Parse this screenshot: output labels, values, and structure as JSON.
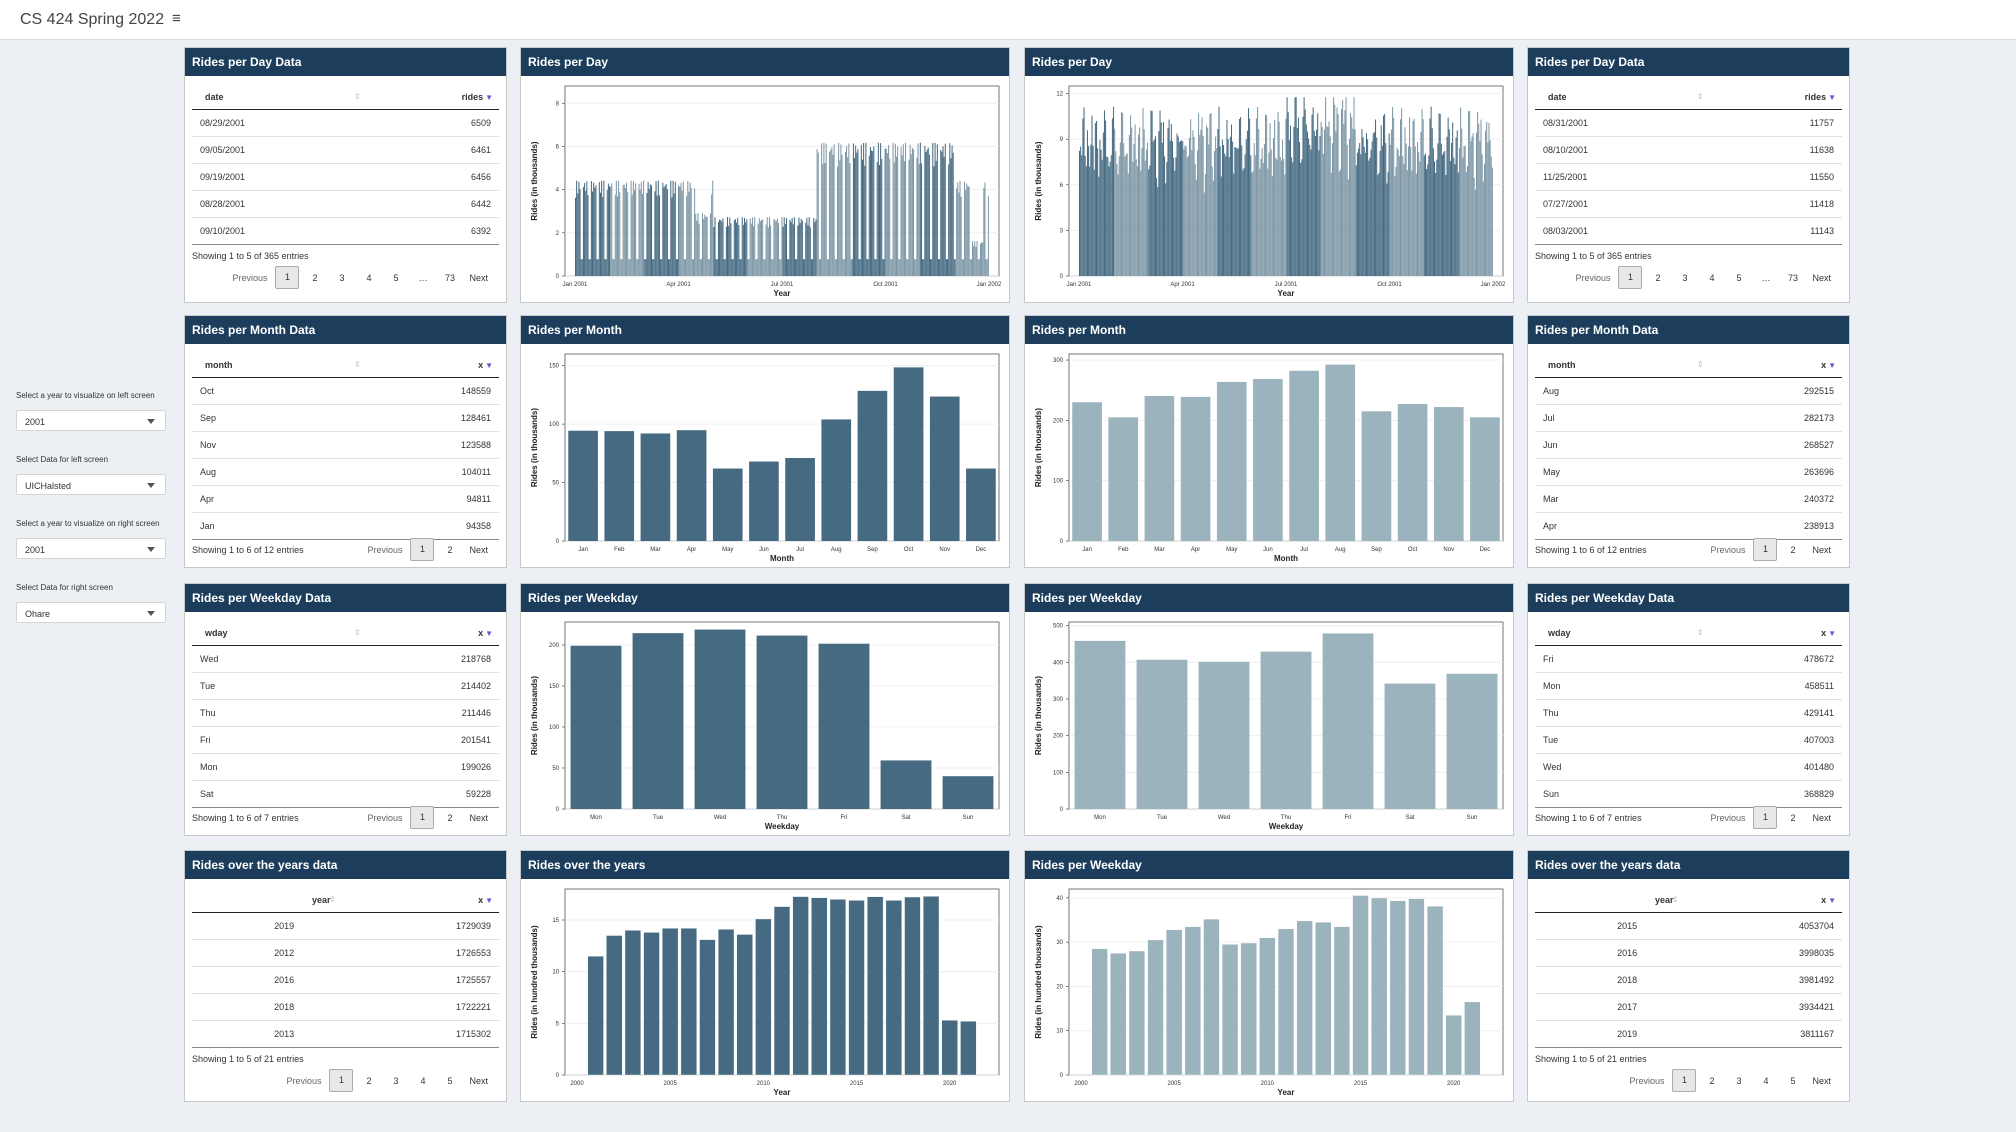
{
  "app": {
    "title": "CS 424 Spring 2022",
    "menu_icon": "hamburger-icon"
  },
  "sidebar": {
    "controls": [
      {
        "label": "Select a year to visualize on left screen",
        "value": "2001"
      },
      {
        "label": "Select Data for left screen",
        "value": "UICHalsted"
      },
      {
        "label": "Select a year to visualize on right screen",
        "value": "2001"
      },
      {
        "label": "Select Data for right screen",
        "value": "Ohare"
      }
    ]
  },
  "colors": {
    "header": "#1c3e5c",
    "left_bar": "#456a82",
    "right_bar": "#9bb3bd"
  },
  "tables": {
    "left_day": {
      "title": "Rides per Day Data",
      "col1": "date",
      "col2": "rides",
      "rows": [
        [
          "08/29/2001",
          "6509"
        ],
        [
          "09/05/2001",
          "6461"
        ],
        [
          "09/19/2001",
          "6456"
        ],
        [
          "08/28/2001",
          "6442"
        ],
        [
          "09/10/2001",
          "6392"
        ]
      ],
      "info": "Showing 1 to 5 of 365 entries",
      "pager": [
        "Previous",
        "1",
        "2",
        "3",
        "4",
        "5",
        "…",
        "73",
        "Next"
      ]
    },
    "right_day": {
      "title": "Rides per Day Data",
      "col1": "date",
      "col2": "rides",
      "rows": [
        [
          "08/31/2001",
          "11757"
        ],
        [
          "08/10/2001",
          "11638"
        ],
        [
          "11/25/2001",
          "11550"
        ],
        [
          "07/27/2001",
          "11418"
        ],
        [
          "08/03/2001",
          "11143"
        ]
      ],
      "info": "Showing 1 to 5 of 365 entries",
      "pager": [
        "Previous",
        "1",
        "2",
        "3",
        "4",
        "5",
        "…",
        "73",
        "Next"
      ]
    },
    "left_month": {
      "title": "Rides per Month Data",
      "col1": "month",
      "col2": "x",
      "rows": [
        [
          "Oct",
          "148559"
        ],
        [
          "Sep",
          "128461"
        ],
        [
          "Nov",
          "123588"
        ],
        [
          "Aug",
          "104011"
        ],
        [
          "Apr",
          "94811"
        ],
        [
          "Jan",
          "94358"
        ]
      ],
      "info": "Showing 1 to 6 of 12 entries",
      "pager": [
        "Previous",
        "1",
        "2",
        "Next"
      ]
    },
    "right_month": {
      "title": "Rides per Month Data",
      "col1": "month",
      "col2": "x",
      "rows": [
        [
          "Aug",
          "292515"
        ],
        [
          "Jul",
          "282173"
        ],
        [
          "Jun",
          "268527"
        ],
        [
          "May",
          "263696"
        ],
        [
          "Mar",
          "240372"
        ],
        [
          "Apr",
          "238913"
        ]
      ],
      "info": "Showing 1 to 6 of 12 entries",
      "pager": [
        "Previous",
        "1",
        "2",
        "Next"
      ]
    },
    "left_weekday": {
      "title": "Rides per Weekday Data",
      "col1": "wday",
      "col2": "x",
      "rows": [
        [
          "Wed",
          "218768"
        ],
        [
          "Tue",
          "214402"
        ],
        [
          "Thu",
          "211446"
        ],
        [
          "Fri",
          "201541"
        ],
        [
          "Mon",
          "199026"
        ],
        [
          "Sat",
          "59228"
        ]
      ],
      "info": "Showing 1 to 6 of 7 entries",
      "pager": [
        "Previous",
        "1",
        "2",
        "Next"
      ]
    },
    "right_weekday": {
      "title": "Rides per Weekday Data",
      "col1": "wday",
      "col2": "x",
      "rows": [
        [
          "Fri",
          "478672"
        ],
        [
          "Mon",
          "458511"
        ],
        [
          "Thu",
          "429141"
        ],
        [
          "Tue",
          "407003"
        ],
        [
          "Wed",
          "401480"
        ],
        [
          "Sun",
          "368829"
        ]
      ],
      "info": "Showing 1 to 6 of 7 entries",
      "pager": [
        "Previous",
        "1",
        "2",
        "Next"
      ]
    },
    "left_years": {
      "title": "Rides over the years data",
      "col1": "year",
      "col2": "x",
      "rows": [
        [
          "2019",
          "1729039"
        ],
        [
          "2012",
          "1726553"
        ],
        [
          "2016",
          "1725557"
        ],
        [
          "2018",
          "1722221"
        ],
        [
          "2013",
          "1715302"
        ]
      ],
      "info": "Showing 1 to 5 of 21 entries",
      "pager": [
        "Previous",
        "1",
        "2",
        "3",
        "4",
        "5",
        "Next"
      ]
    },
    "right_years": {
      "title": "Rides over the years data",
      "col1": "year",
      "col2": "x",
      "rows": [
        [
          "2015",
          "4053704"
        ],
        [
          "2016",
          "3998035"
        ],
        [
          "2018",
          "3981492"
        ],
        [
          "2017",
          "3934421"
        ],
        [
          "2019",
          "3811167"
        ]
      ],
      "info": "Showing 1 to 5 of 21 entries",
      "pager": [
        "Previous",
        "1",
        "2",
        "3",
        "4",
        "5",
        "Next"
      ]
    }
  },
  "chart_data": [
    {
      "id": "left_day",
      "type": "bar",
      "title": "Rides per Day",
      "xlabel": "Year",
      "ylabel": "Rides (in thousands)",
      "ylim": [
        0,
        8.8
      ],
      "yticks": [
        0,
        2,
        4,
        6,
        8
      ],
      "xticks": [
        "Jan 2001",
        "Apr 2001",
        "Jul 2001",
        "Oct 2001",
        "Jan 2002"
      ],
      "n": 365,
      "pattern": "daily",
      "peak": 6.5,
      "color": "#456a82"
    },
    {
      "id": "right_day",
      "type": "bar",
      "title": "Rides per Day",
      "xlabel": "Year",
      "ylabel": "Rides (in thousands)",
      "ylim": [
        0,
        12.5
      ],
      "yticks": [
        0,
        3,
        6,
        9,
        12
      ],
      "xticks": [
        "Jan 2001",
        "Apr 2001",
        "Jul 2001",
        "Oct 2001",
        "Jan 2002"
      ],
      "n": 365,
      "pattern": "daily",
      "peak": 11.76,
      "color": "#456a82"
    },
    {
      "id": "left_month",
      "type": "bar",
      "title": "Rides per Month",
      "xlabel": "Month",
      "ylabel": "Rides (in thousands)",
      "ylim": [
        0,
        160
      ],
      "yticks": [
        0,
        50,
        100,
        150
      ],
      "categories": [
        "Jan",
        "Feb",
        "Mar",
        "Apr",
        "May",
        "Jun",
        "Jul",
        "Aug",
        "Sep",
        "Oct",
        "Nov",
        "Dec"
      ],
      "values": [
        94.358,
        94,
        92,
        94.811,
        62,
        68,
        71,
        104.011,
        128.461,
        148.559,
        123.588,
        62
      ],
      "color": "#456a82"
    },
    {
      "id": "right_month",
      "type": "bar",
      "title": "Rides per Month",
      "xlabel": "Month",
      "ylabel": "Rides (in thousands)",
      "ylim": [
        0,
        310
      ],
      "yticks": [
        0,
        100,
        200,
        300
      ],
      "categories": [
        "Jan",
        "Feb",
        "Mar",
        "Apr",
        "May",
        "Jun",
        "Jul",
        "Aug",
        "Sep",
        "Oct",
        "Nov",
        "Dec"
      ],
      "values": [
        230,
        205,
        240.372,
        238.913,
        263.696,
        268.527,
        282.173,
        292.515,
        215,
        227,
        222,
        205
      ],
      "color": "#9bb3bd"
    },
    {
      "id": "left_weekday",
      "type": "bar",
      "title": "Rides per Weekday",
      "xlabel": "Weekday",
      "ylabel": "Rides (in thousands)",
      "ylim": [
        0,
        228
      ],
      "yticks": [
        0,
        50,
        100,
        150,
        200
      ],
      "categories": [
        "Mon",
        "Tue",
        "Wed",
        "Thu",
        "Fri",
        "Sat",
        "Sun"
      ],
      "values": [
        199.026,
        214.402,
        218.768,
        211.446,
        201.541,
        59.228,
        40
      ],
      "color": "#456a82"
    },
    {
      "id": "right_weekday",
      "type": "bar",
      "title": "Rides per Weekday",
      "xlabel": "Weekday",
      "ylabel": "Rides (in thousands)",
      "ylim": [
        0,
        510
      ],
      "yticks": [
        0,
        100,
        200,
        300,
        400,
        500
      ],
      "categories": [
        "Mon",
        "Tue",
        "Wed",
        "Thu",
        "Fri",
        "Sat",
        "Sun"
      ],
      "values": [
        458.511,
        407.003,
        401.48,
        429.141,
        478.672,
        342,
        368.829
      ],
      "color": "#9bb3bd"
    },
    {
      "id": "left_years",
      "type": "bar",
      "title": "Rides over the years",
      "xlabel": "Year",
      "ylabel": "Rides (in hundred thousands)",
      "ylim": [
        0,
        18
      ],
      "yticks": [
        0,
        5,
        10,
        15
      ],
      "xticks": [
        "2000",
        "2005",
        "2010",
        "2015",
        "2020"
      ],
      "x": [
        2001,
        2002,
        2003,
        2004,
        2005,
        2006,
        2007,
        2008,
        2009,
        2010,
        2011,
        2012,
        2013,
        2014,
        2015,
        2016,
        2017,
        2018,
        2019,
        2020,
        2021
      ],
      "values": [
        11.5,
        13.5,
        14,
        13.8,
        14.2,
        14.2,
        13.1,
        14.1,
        13.6,
        15.1,
        16.3,
        17.26553,
        17.15302,
        17,
        16.9,
        17.25557,
        16.9,
        17.22221,
        17.29039,
        5.3,
        5.2
      ],
      "color": "#456a82"
    },
    {
      "id": "right_years",
      "type": "bar",
      "title": "Rides per Weekday",
      "xlabel": "Year",
      "ylabel": "Rides (in hundred thousands)",
      "ylim": [
        0,
        42
      ],
      "yticks": [
        0,
        10,
        20,
        30,
        40
      ],
      "xticks": [
        "2000",
        "2005",
        "2010",
        "2015",
        "2020"
      ],
      "x": [
        2001,
        2002,
        2003,
        2004,
        2005,
        2006,
        2007,
        2008,
        2009,
        2010,
        2011,
        2012,
        2013,
        2014,
        2015,
        2016,
        2017,
        2018,
        2019,
        2020,
        2021
      ],
      "values": [
        28.5,
        27.5,
        28,
        30.5,
        32.8,
        33.5,
        35.2,
        29.5,
        29.8,
        31,
        33,
        34.8,
        34.5,
        33.5,
        40.53704,
        39.98035,
        39.34421,
        39.81492,
        38.11167,
        13.5,
        16.5
      ],
      "color": "#9bb3bd"
    }
  ]
}
